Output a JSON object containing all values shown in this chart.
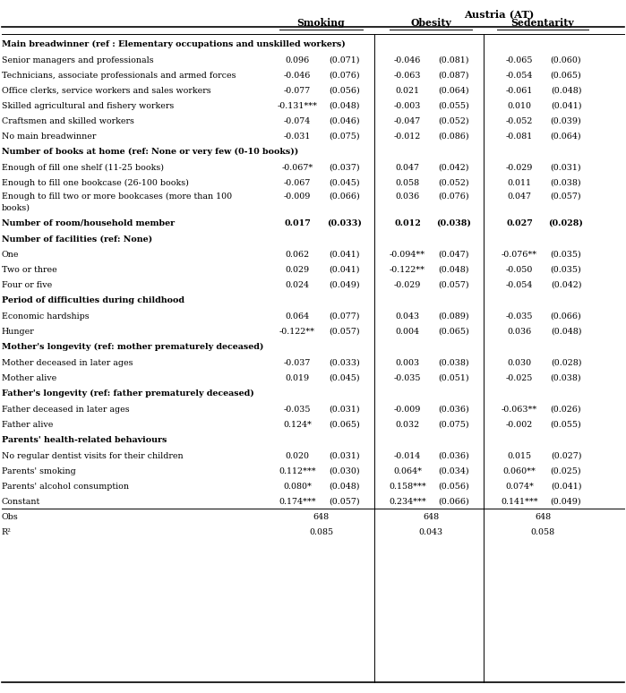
{
  "title": "Austria (AT)",
  "col_headers": [
    "Smoking",
    "Obesity",
    "Sedentarity"
  ],
  "rows": [
    {
      "label": "Main breadwinner (ref : Elementary occupations and unskilled workers)",
      "type": "section",
      "vals": []
    },
    {
      "label": "Senior managers and professionals",
      "type": "data",
      "vals": [
        "0.096",
        "(0.071)",
        "-0.046",
        "(0.081)",
        "-0.065",
        "(0.060)"
      ]
    },
    {
      "label": "Technicians, associate professionals and armed forces",
      "type": "data",
      "vals": [
        "-0.046",
        "(0.076)",
        "-0.063",
        "(0.087)",
        "-0.054",
        "(0.065)"
      ]
    },
    {
      "label": "Office clerks, service workers and sales workers",
      "type": "data",
      "vals": [
        "-0.077",
        "(0.056)",
        "0.021",
        "(0.064)",
        "-0.061",
        "(0.048)"
      ]
    },
    {
      "label": "Skilled agricultural and fishery workers",
      "type": "data",
      "vals": [
        "-0.131***",
        "(0.048)",
        "-0.003",
        "(0.055)",
        "0.010",
        "(0.041)"
      ]
    },
    {
      "label": "Craftsmen and skilled workers",
      "type": "data",
      "vals": [
        "-0.074",
        "(0.046)",
        "-0.047",
        "(0.052)",
        "-0.052",
        "(0.039)"
      ]
    },
    {
      "label": "No main breadwinner",
      "type": "data",
      "vals": [
        "-0.031",
        "(0.075)",
        "-0.012",
        "(0.086)",
        "-0.081",
        "(0.064)"
      ]
    },
    {
      "label": "Number of books at home (ref: None or very few (0-10 books))",
      "type": "section",
      "vals": []
    },
    {
      "label": "Enough of fill one shelf (11-25 books)",
      "type": "data",
      "vals": [
        "-0.067*",
        "(0.037)",
        "0.047",
        "(0.042)",
        "-0.029",
        "(0.031)"
      ]
    },
    {
      "label": "Enough to fill one bookcase (26-100 books)",
      "type": "data",
      "vals": [
        "-0.067",
        "(0.045)",
        "0.058",
        "(0.052)",
        "0.011",
        "(0.038)"
      ]
    },
    {
      "label": "Enough to fill two or more bookcases (more than 100\nbooks)",
      "type": "data2",
      "vals": [
        "-0.009",
        "(0.066)",
        "0.036",
        "(0.076)",
        "0.047",
        "(0.057)"
      ]
    },
    {
      "label": "Number of room/household member",
      "type": "bold_data",
      "vals": [
        "0.017",
        "(0.033)",
        "0.012",
        "(0.038)",
        "0.027",
        "(0.028)"
      ]
    },
    {
      "label": "Number of facilities (ref: None)",
      "type": "section",
      "vals": []
    },
    {
      "label": "One",
      "type": "data",
      "vals": [
        "0.062",
        "(0.041)",
        "-0.094**",
        "(0.047)",
        "-0.076**",
        "(0.035)"
      ]
    },
    {
      "label": "Two or three",
      "type": "data",
      "vals": [
        "0.029",
        "(0.041)",
        "-0.122**",
        "(0.048)",
        "-0.050",
        "(0.035)"
      ]
    },
    {
      "label": "Four or five",
      "type": "data",
      "vals": [
        "0.024",
        "(0.049)",
        "-0.029",
        "(0.057)",
        "-0.054",
        "(0.042)"
      ]
    },
    {
      "label": "Period of difficulties during childhood",
      "type": "section",
      "vals": []
    },
    {
      "label": "Economic hardships",
      "type": "data",
      "vals": [
        "0.064",
        "(0.077)",
        "0.043",
        "(0.089)",
        "-0.035",
        "(0.066)"
      ]
    },
    {
      "label": "Hunger",
      "type": "data",
      "vals": [
        "-0.122**",
        "(0.057)",
        "0.004",
        "(0.065)",
        "0.036",
        "(0.048)"
      ]
    },
    {
      "label": "Mother's longevity (ref: mother prematurely deceased)",
      "type": "section",
      "vals": []
    },
    {
      "label": "Mother deceased in later ages",
      "type": "data",
      "vals": [
        "-0.037",
        "(0.033)",
        "0.003",
        "(0.038)",
        "0.030",
        "(0.028)"
      ]
    },
    {
      "label": "Mother alive",
      "type": "data",
      "vals": [
        "0.019",
        "(0.045)",
        "-0.035",
        "(0.051)",
        "-0.025",
        "(0.038)"
      ]
    },
    {
      "label": "Father's longevity (ref: father prematurely deceased)",
      "type": "section",
      "vals": []
    },
    {
      "label": "Father deceased in later ages",
      "type": "data",
      "vals": [
        "-0.035",
        "(0.031)",
        "-0.009",
        "(0.036)",
        "-0.063**",
        "(0.026)"
      ]
    },
    {
      "label": "Father alive",
      "type": "data",
      "vals": [
        "0.124*",
        "(0.065)",
        "0.032",
        "(0.075)",
        "-0.002",
        "(0.055)"
      ]
    },
    {
      "label": "Parents' health-related behaviours",
      "type": "section",
      "vals": []
    },
    {
      "label": "No regular dentist visits for their children",
      "type": "data",
      "vals": [
        "0.020",
        "(0.031)",
        "-0.014",
        "(0.036)",
        "0.015",
        "(0.027)"
      ]
    },
    {
      "label": "Parents' smoking",
      "type": "data",
      "vals": [
        "0.112***",
        "(0.030)",
        "0.064*",
        "(0.034)",
        "0.060**",
        "(0.025)"
      ]
    },
    {
      "label": "Parents' alcohol consumption",
      "type": "data",
      "vals": [
        "0.080*",
        "(0.048)",
        "0.158***",
        "(0.056)",
        "0.074*",
        "(0.041)"
      ]
    },
    {
      "label": "Constant",
      "type": "data",
      "vals": [
        "0.174***",
        "(0.057)",
        "0.234***",
        "(0.066)",
        "0.141***",
        "(0.049)"
      ]
    },
    {
      "label": "Obs",
      "type": "stat",
      "vals": [
        "648",
        "",
        "648",
        "",
        "648",
        ""
      ]
    },
    {
      "label": "R²",
      "type": "stat",
      "vals": [
        "0.085",
        "",
        "0.043",
        "",
        "0.058",
        ""
      ]
    }
  ],
  "bg_color": "#ffffff",
  "text_color": "#000000",
  "font_size": 6.8,
  "header_font_size": 7.8,
  "title_font_size": 8.2
}
